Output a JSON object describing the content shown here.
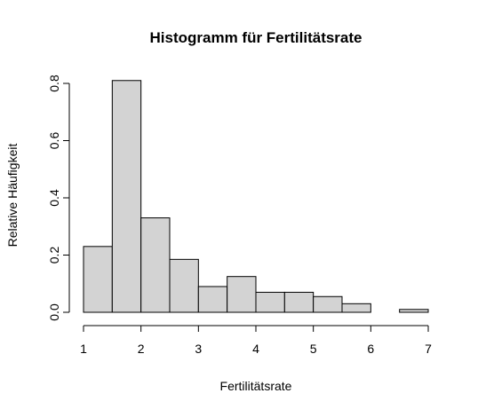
{
  "chart_data": {
    "type": "bar",
    "title": "Histogramm für Fertilitätsrate",
    "xlabel": "Fertilitätsrate",
    "ylabel": "Relative Häufigkeit",
    "bin_edges": [
      1,
      1.5,
      2,
      2.5,
      3,
      3.5,
      4,
      4.5,
      5,
      5.5,
      6,
      6.5,
      7
    ],
    "values": [
      0.23,
      0.81,
      0.33,
      0.185,
      0.09,
      0.125,
      0.07,
      0.07,
      0.055,
      0.03,
      0.0,
      0.01
    ],
    "xlim": [
      1,
      7
    ],
    "ylim": [
      0,
      0.8
    ],
    "x_ticks": [
      "1",
      "2",
      "3",
      "4",
      "5",
      "6",
      "7"
    ],
    "y_ticks": [
      "0.0",
      "0.2",
      "0.4",
      "0.6",
      "0.8"
    ],
    "bar_color": "#d3d3d3",
    "grid": false
  }
}
